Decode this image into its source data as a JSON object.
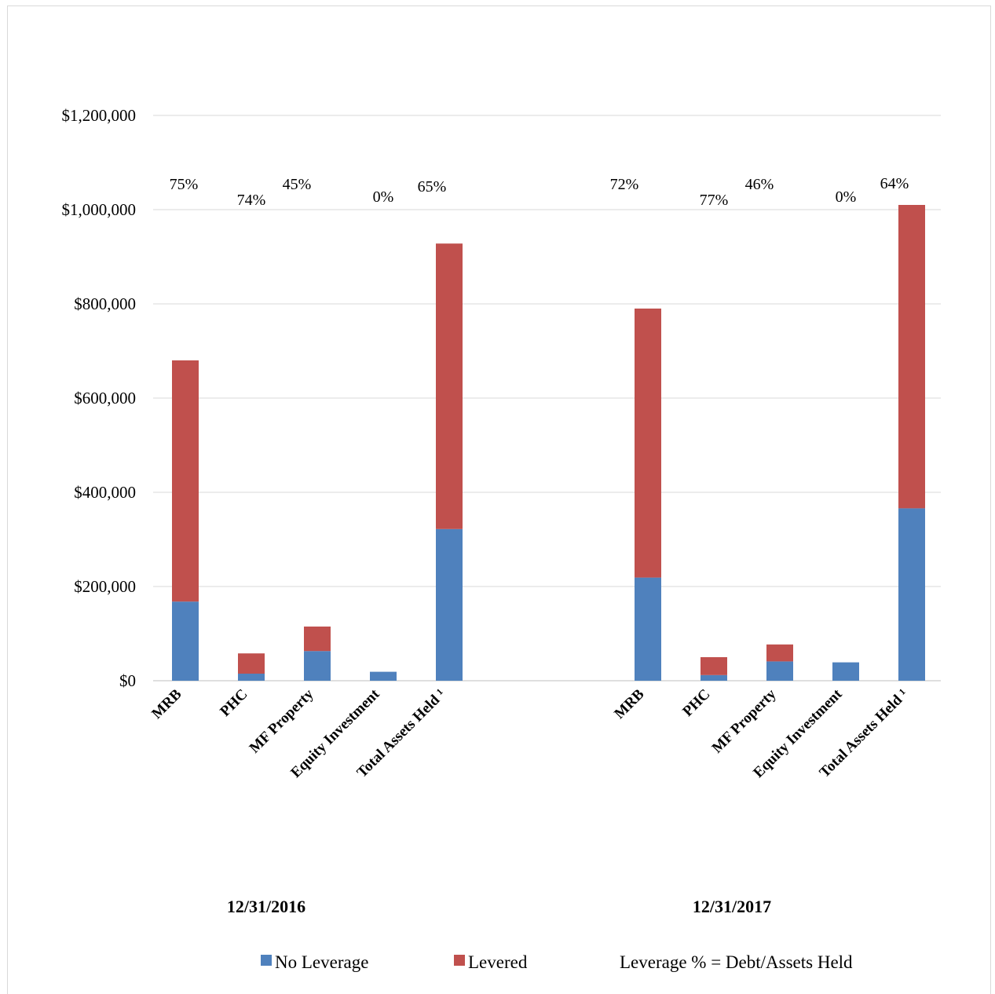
{
  "chart_data": {
    "type": "bar",
    "stacked": true,
    "title": "",
    "xlabel": "",
    "ylabel": "",
    "ylim": [
      0,
      1200000
    ],
    "yticks": [
      "$0",
      "$200,000",
      "$400,000",
      "$600,000",
      "$800,000",
      "$1,000,000",
      "$1,200,000"
    ],
    "grid": true,
    "legend_position": "bottom",
    "note": "Leverage % = Debt/Assets Held",
    "colors": {
      "No Leverage": "#4f81bd",
      "Levered": "#c0504d"
    },
    "groups": [
      {
        "label": "12/31/2016",
        "categories": [
          "MRB",
          "PHC",
          "MF Property",
          "Equity Investment",
          "Total Assets Held ¹"
        ],
        "leverage_pct": [
          "75%",
          "74%",
          "45%",
          "0%",
          "65%"
        ],
        "series": [
          {
            "name": "No Leverage",
            "values": [
              168000,
              15000,
              63000,
              19000,
              322000
            ]
          },
          {
            "name": "Levered",
            "values": [
              512000,
              43000,
              52000,
              0,
              606000
            ]
          }
        ]
      },
      {
        "label": "12/31/2017",
        "categories": [
          "MRB",
          "PHC",
          "MF Property",
          "Equity Investment",
          "Total Assets Held ¹"
        ],
        "leverage_pct": [
          "72%",
          "77%",
          "46%",
          "0%",
          "64%"
        ],
        "series": [
          {
            "name": "No Leverage",
            "values": [
              219000,
              12000,
              41000,
              39000,
              366000
            ]
          },
          {
            "name": "Levered",
            "values": [
              571000,
              38000,
              36000,
              0,
              644000
            ]
          }
        ]
      }
    ]
  }
}
